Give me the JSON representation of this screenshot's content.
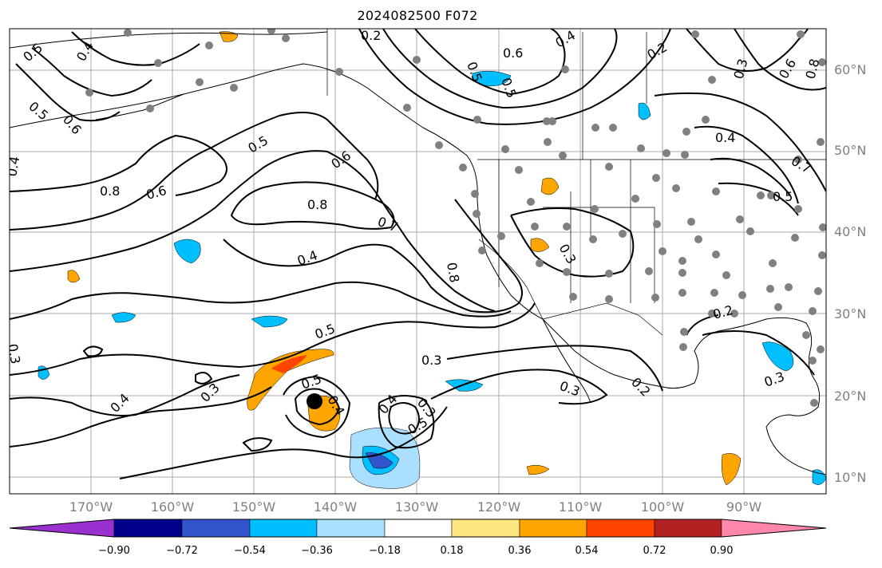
{
  "title": "2024082500 F072",
  "lat_labels": [
    "60°N",
    "50°N",
    "40°N",
    "30°N",
    "20°N",
    "10°N"
  ],
  "lon_labels": [
    "170°W",
    "160°W",
    "150°W",
    "140°W",
    "130°W",
    "120°W",
    "110°W",
    "100°W",
    "90°W"
  ],
  "colorbar": {
    "ticks": [
      "−0.90",
      "−0.72",
      "−0.54",
      "−0.36",
      "−0.18",
      "0.18",
      "0.36",
      "0.54",
      "0.72",
      "0.90"
    ],
    "colors": [
      "#9b30d0",
      "#00008b",
      "#3355cc",
      "#00bfff",
      "#aadfff",
      "#ffffff",
      "#ffe680",
      "#ffa500",
      "#ff4500",
      "#b22222",
      "#ff88aa"
    ]
  },
  "contour_labels": [
    "0.2",
    "0.3",
    "0.4",
    "0.5",
    "0.6",
    "0.7",
    "0.8"
  ]
}
